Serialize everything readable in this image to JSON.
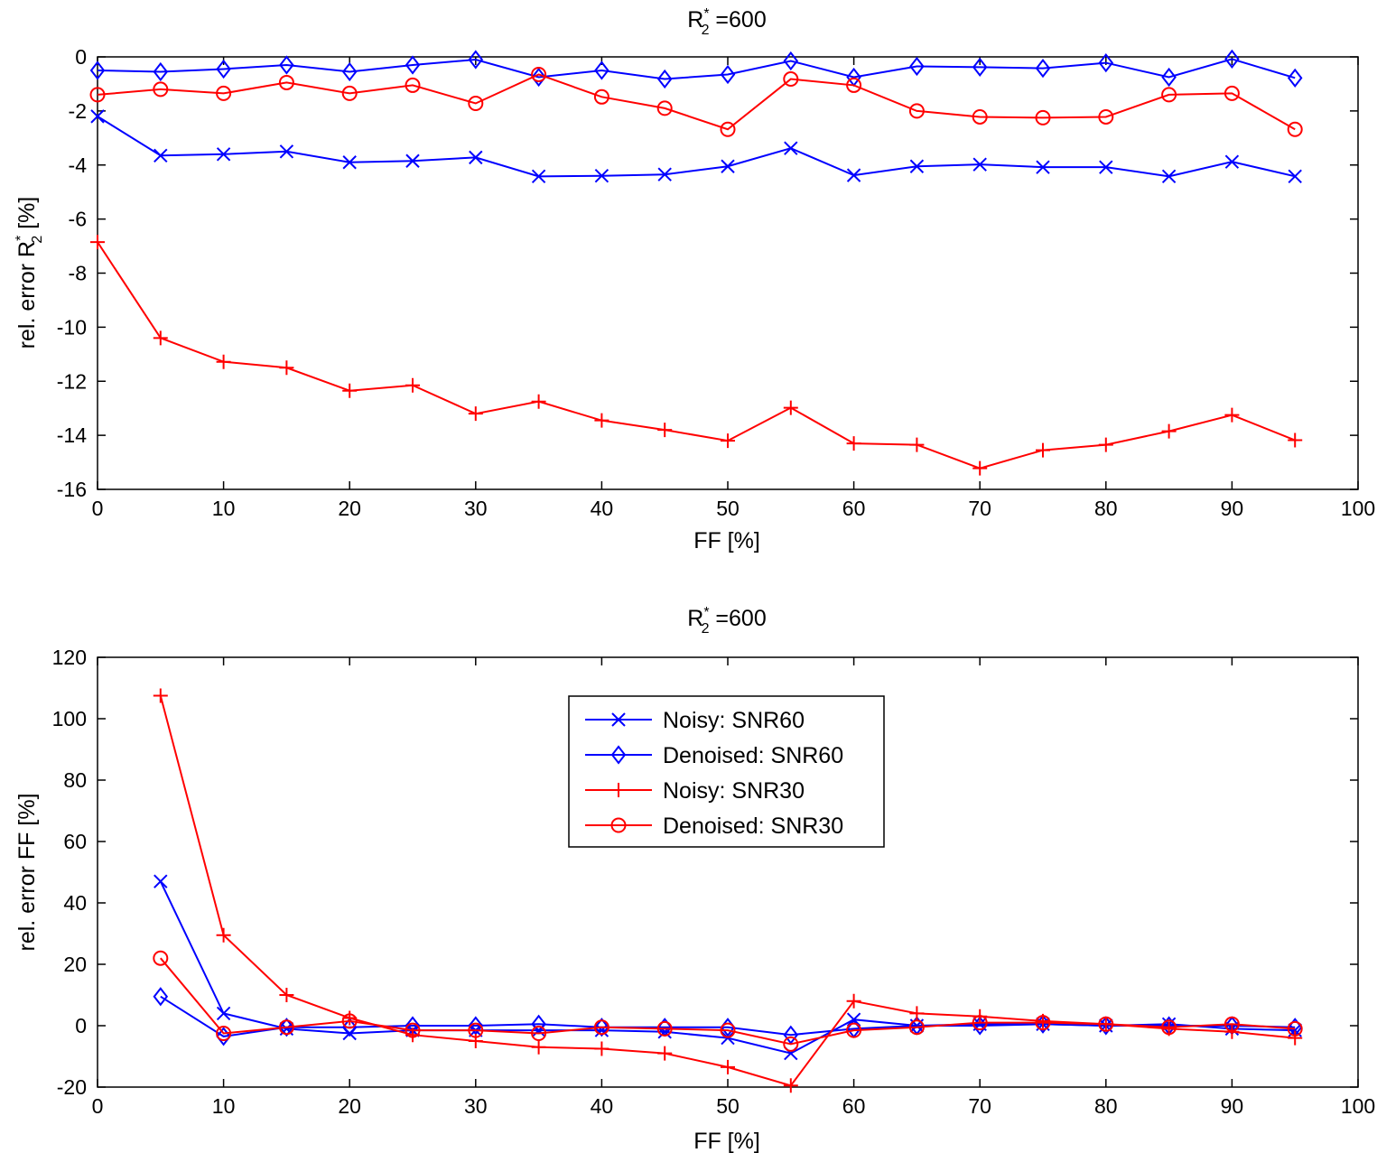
{
  "chart_data": [
    {
      "type": "line",
      "title": {
        "main": "R",
        "sub": "2",
        "sup": "*",
        "rest": " =600"
      },
      "xlabel": "FF [%]",
      "ylabel": {
        "main": "rel. error R",
        "sub": "2",
        "sup": "*",
        "rest": " [%]"
      },
      "xlim": [
        0,
        100
      ],
      "ylim": [
        -16,
        0
      ],
      "xticks": [
        0,
        10,
        20,
        30,
        40,
        50,
        60,
        70,
        80,
        90,
        100
      ],
      "yticks": [
        0,
        -2,
        -4,
        -6,
        -8,
        -10,
        -12,
        -14,
        -16
      ],
      "x": [
        0,
        5,
        10,
        15,
        20,
        25,
        30,
        35,
        40,
        45,
        50,
        55,
        60,
        65,
        70,
        75,
        80,
        85,
        90,
        95
      ],
      "series": [
        {
          "name": "Noisy: SNR60",
          "color": "#0000ff",
          "marker": "x",
          "values": [
            -2.2,
            -3.65,
            -3.6,
            -3.5,
            -3.9,
            -3.85,
            -3.72,
            -4.42,
            -4.4,
            -4.35,
            -4.05,
            -3.38,
            -4.38,
            -4.05,
            -3.98,
            -4.08,
            -4.08,
            -4.42,
            -3.88,
            -4.42
          ]
        },
        {
          "name": "Denoised: SNR60",
          "color": "#0000ff",
          "marker": "diamond",
          "values": [
            -0.5,
            -0.55,
            -0.45,
            -0.3,
            -0.55,
            -0.3,
            -0.1,
            -0.75,
            -0.5,
            -0.82,
            -0.65,
            -0.15,
            -0.75,
            -0.35,
            -0.38,
            -0.42,
            -0.22,
            -0.75,
            -0.08,
            -0.78
          ]
        },
        {
          "name": "Noisy: SNR30",
          "color": "#ff0000",
          "marker": "plus",
          "values": [
            -6.85,
            -10.4,
            -11.28,
            -11.5,
            -12.35,
            -12.15,
            -13.2,
            -12.75,
            -13.45,
            -13.8,
            -14.2,
            -12.98,
            -14.3,
            -14.35,
            -15.22,
            -14.55,
            -14.35,
            -13.85,
            -13.25,
            -14.18
          ]
        },
        {
          "name": "Denoised: SNR30",
          "color": "#ff0000",
          "marker": "circle",
          "values": [
            -1.4,
            -1.2,
            -1.35,
            -0.95,
            -1.35,
            -1.05,
            -1.72,
            -0.65,
            -1.48,
            -1.9,
            -2.68,
            -0.82,
            -1.05,
            -2.0,
            -2.22,
            -2.25,
            -2.22,
            -1.4,
            -1.35,
            -2.68
          ]
        }
      ]
    },
    {
      "type": "line",
      "title": {
        "main": "R",
        "sub": "2",
        "sup": "*",
        "rest": " =600"
      },
      "xlabel": "FF [%]",
      "ylabel": "rel. error FF [%]",
      "xlim": [
        0,
        100
      ],
      "ylim": [
        -20,
        120
      ],
      "xticks": [
        0,
        10,
        20,
        30,
        40,
        50,
        60,
        70,
        80,
        90,
        100
      ],
      "yticks": [
        120,
        100,
        80,
        60,
        40,
        20,
        0,
        -20
      ],
      "legend_position": "top-center",
      "x": [
        5,
        10,
        15,
        20,
        25,
        30,
        35,
        40,
        45,
        50,
        55,
        60,
        65,
        70,
        75,
        80,
        85,
        90,
        95
      ],
      "series": [
        {
          "name": "Noisy: SNR60",
          "color": "#0000ff",
          "marker": "x",
          "values": [
            47,
            4,
            -1,
            -2.5,
            -1.5,
            -1.5,
            -1.5,
            -1.5,
            -2,
            -4,
            -9,
            2,
            0,
            0.5,
            0.5,
            0,
            0.5,
            -1,
            -1.5
          ]
        },
        {
          "name": "Denoised: SNR60",
          "color": "#0000ff",
          "marker": "diamond",
          "values": [
            9.5,
            -3.5,
            -0.5,
            -0.5,
            0,
            0,
            0.5,
            -0.5,
            -0.5,
            -0.5,
            -3,
            -1,
            0,
            0,
            0.5,
            0,
            0,
            0,
            -0.5
          ]
        },
        {
          "name": "Noisy: SNR30",
          "color": "#ff0000",
          "marker": "plus",
          "values": [
            107.5,
            29.5,
            10,
            2.5,
            -3,
            -5,
            -7,
            -7.5,
            -9,
            -13.5,
            -19.5,
            8,
            4,
            3,
            1.5,
            0.5,
            -1,
            -2,
            -4
          ]
        },
        {
          "name": "Denoised: SNR30",
          "color": "#ff0000",
          "marker": "circle",
          "values": [
            22,
            -2.5,
            -0.5,
            1.5,
            -1.5,
            -1.5,
            -2.5,
            -0.5,
            -1,
            -1.5,
            -6,
            -1.5,
            -0.5,
            1,
            1,
            0.5,
            -0.5,
            0.5,
            -1
          ]
        }
      ]
    }
  ]
}
